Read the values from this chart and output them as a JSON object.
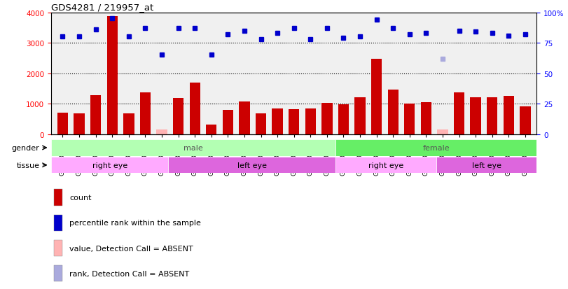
{
  "title": "GDS4281 / 219957_at",
  "samples": [
    "GSM685471",
    "GSM685472",
    "GSM685473",
    "GSM685601",
    "GSM685650",
    "GSM685651",
    "GSM686961",
    "GSM686962",
    "GSM686988",
    "GSM686990",
    "GSM685522",
    "GSM685523",
    "GSM685603",
    "GSM686963",
    "GSM686986",
    "GSM686989",
    "GSM686991",
    "GSM685474",
    "GSM685602",
    "GSM686984",
    "GSM686985",
    "GSM686987",
    "GSM687004",
    "GSM685470",
    "GSM685475",
    "GSM685652",
    "GSM687001",
    "GSM687002",
    "GSM687003"
  ],
  "counts": [
    700,
    670,
    1270,
    3870,
    670,
    1380,
    150,
    1180,
    1690,
    310,
    800,
    1060,
    670,
    840,
    810,
    830,
    1020,
    970,
    1200,
    2480,
    1470,
    1000,
    1040,
    150,
    1380,
    1210,
    1200,
    1260,
    900
  ],
  "absent_count": [
    false,
    false,
    false,
    false,
    false,
    false,
    true,
    false,
    false,
    false,
    false,
    false,
    false,
    false,
    false,
    false,
    false,
    false,
    false,
    false,
    false,
    false,
    false,
    true,
    false,
    false,
    false,
    false,
    false
  ],
  "ranks_pct": [
    80,
    80,
    86,
    95,
    80,
    87,
    65,
    87,
    87,
    65,
    82,
    85,
    78,
    83,
    87,
    78,
    87,
    79,
    80,
    94,
    87,
    82,
    83,
    62,
    85,
    84,
    83,
    81,
    82
  ],
  "absent_rank": [
    false,
    false,
    false,
    false,
    false,
    false,
    false,
    false,
    false,
    false,
    false,
    false,
    false,
    false,
    false,
    false,
    false,
    false,
    false,
    false,
    false,
    false,
    false,
    true,
    false,
    false,
    false,
    false,
    false
  ],
  "gender": [
    "male",
    "male",
    "male",
    "male",
    "male",
    "male",
    "male",
    "male",
    "male",
    "male",
    "male",
    "male",
    "male",
    "male",
    "male",
    "male",
    "male",
    "female",
    "female",
    "female",
    "female",
    "female",
    "female",
    "female",
    "female",
    "female",
    "female",
    "female",
    "female"
  ],
  "tissue": [
    "right eye",
    "right eye",
    "right eye",
    "right eye",
    "right eye",
    "right eye",
    "right eye",
    "left eye",
    "left eye",
    "left eye",
    "left eye",
    "left eye",
    "left eye",
    "left eye",
    "left eye",
    "left eye",
    "left eye",
    "right eye",
    "right eye",
    "right eye",
    "right eye",
    "right eye",
    "right eye",
    "left eye",
    "left eye",
    "left eye",
    "left eye",
    "left eye",
    "left eye"
  ],
  "bar_color": "#cc0000",
  "bar_absent_color": "#ffb3b3",
  "rank_color": "#0000cc",
  "rank_absent_color": "#aaaadd",
  "male_color": "#b3ffb3",
  "female_color": "#66ee66",
  "right_eye_color": "#ffaaff",
  "left_eye_color": "#dd66dd",
  "ylim_left": [
    0,
    4000
  ],
  "ylim_right": [
    0,
    100
  ],
  "yticks_left": [
    0,
    1000,
    2000,
    3000,
    4000
  ],
  "yticks_right": [
    0,
    25,
    50,
    75,
    100
  ],
  "yticklabels_right": [
    "0",
    "25",
    "50",
    "75",
    "100%"
  ]
}
